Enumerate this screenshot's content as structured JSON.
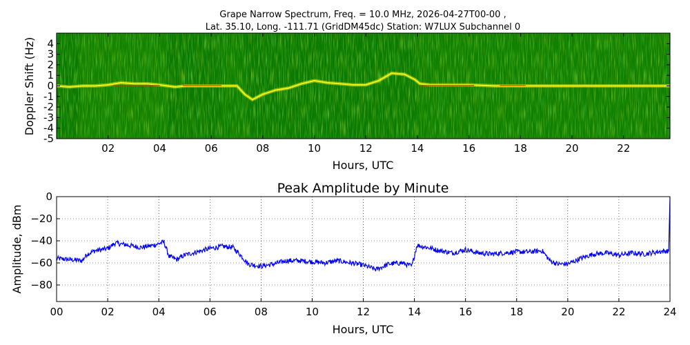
{
  "chart_data": [
    {
      "type": "heatmap",
      "title_line1": "Grape Narrow Spectrum, Freq. = 10.0 MHz, 2026-04-27T00-00 ,",
      "title_line2": "Lat.  35.10, Long. -111.71 (GridDM45dc) Station: W7LUX Subchannel 0",
      "xlabel": "Hours, UTC",
      "ylabel": "Doppler Shift (Hz)",
      "xlim": [
        0,
        23.8
      ],
      "ylim": [
        -5,
        5
      ],
      "xticks": [
        "02",
        "04",
        "06",
        "08",
        "10",
        "12",
        "14",
        "16",
        "18",
        "20",
        "22"
      ],
      "xtick_values": [
        2,
        4,
        6,
        8,
        10,
        12,
        14,
        16,
        18,
        20,
        22
      ],
      "yticks": [
        "4",
        "3",
        "2",
        "1",
        "0",
        "-1",
        "-2",
        "-3",
        "-4",
        "-5"
      ],
      "ytick_values": [
        4,
        3,
        2,
        1,
        0,
        -1,
        -2,
        -3,
        -4,
        -5
      ],
      "colors": {
        "background": "#0a7a00",
        "noise": "#3fae00",
        "trace": "#f2f21a",
        "peak": "#ff2200"
      },
      "doppler_trace": {
        "hours": [
          0,
          0.5,
          1,
          1.5,
          2,
          2.5,
          3,
          3.5,
          4,
          4.3,
          4.6,
          5,
          5.5,
          6,
          6.5,
          7,
          7.3,
          7.6,
          8,
          8.5,
          9,
          9.5,
          10,
          10.5,
          11,
          11.5,
          12,
          12.5,
          13,
          13.5,
          13.9,
          14.1,
          14.5,
          15,
          16,
          17,
          18,
          19,
          20,
          21,
          22,
          23,
          23.8
        ],
        "doppler": [
          0,
          -0.1,
          0,
          0,
          0.1,
          0.3,
          0.2,
          0.2,
          0.1,
          0,
          -0.1,
          0,
          0,
          0,
          0,
          0,
          -0.8,
          -1.3,
          -0.8,
          -0.4,
          -0.2,
          0.2,
          0.5,
          0.3,
          0.2,
          0.1,
          0.1,
          0.5,
          1.2,
          1.1,
          0.6,
          0.2,
          0.1,
          0.1,
          0.1,
          0,
          0,
          0,
          0,
          0,
          0,
          0,
          0
        ]
      }
    },
    {
      "type": "line",
      "title": "Peak Amplitude by Minute",
      "xlabel": "Hours, UTC",
      "ylabel": "Amplitude, dBm",
      "xlim": [
        0,
        24
      ],
      "ylim": [
        -95,
        0
      ],
      "grid": true,
      "xticks": [
        "00",
        "02",
        "04",
        "06",
        "08",
        "10",
        "12",
        "14",
        "16",
        "18",
        "20",
        "22",
        "24"
      ],
      "xtick_values": [
        0,
        2,
        4,
        6,
        8,
        10,
        12,
        14,
        16,
        18,
        20,
        22,
        24
      ],
      "yticks": [
        "0",
        "−20",
        "−40",
        "−60",
        "−80"
      ],
      "ytick_values": [
        0,
        -20,
        -40,
        -60,
        -80
      ],
      "line_color": "#0000ff",
      "series": [
        {
          "x": [
            0,
            0.5,
            1,
            1.2,
            1.5,
            2,
            2.3,
            2.8,
            3.3,
            3.8,
            4.2,
            4.4,
            4.7,
            5,
            5.5,
            6,
            6.5,
            6.9,
            7.2,
            7.5,
            8,
            8.5,
            9,
            9.5,
            10,
            10.5,
            11,
            11.5,
            12,
            12.5,
            13,
            13.5,
            13.9,
            14.1,
            14.5,
            15,
            15.5,
            16,
            16.5,
            17,
            17.5,
            18,
            18.5,
            19,
            19.3,
            19.6,
            20,
            20.5,
            21,
            21.5,
            22,
            22.5,
            23,
            23.5,
            23.95,
            24
          ],
          "y": [
            -56,
            -57,
            -58,
            -52,
            -49,
            -47,
            -42,
            -44,
            -46,
            -44,
            -41,
            -54,
            -57,
            -53,
            -50,
            -47,
            -45,
            -46,
            -53,
            -61,
            -63,
            -61,
            -58,
            -58,
            -59,
            -60,
            -58,
            -60,
            -62,
            -66,
            -61,
            -60,
            -63,
            -44,
            -46,
            -49,
            -51,
            -48,
            -51,
            -52,
            -51,
            -50,
            -50,
            -49,
            -58,
            -61,
            -61,
            -56,
            -52,
            -51,
            -53,
            -51,
            -52,
            -50,
            -49,
            0
          ]
        }
      ]
    }
  ]
}
